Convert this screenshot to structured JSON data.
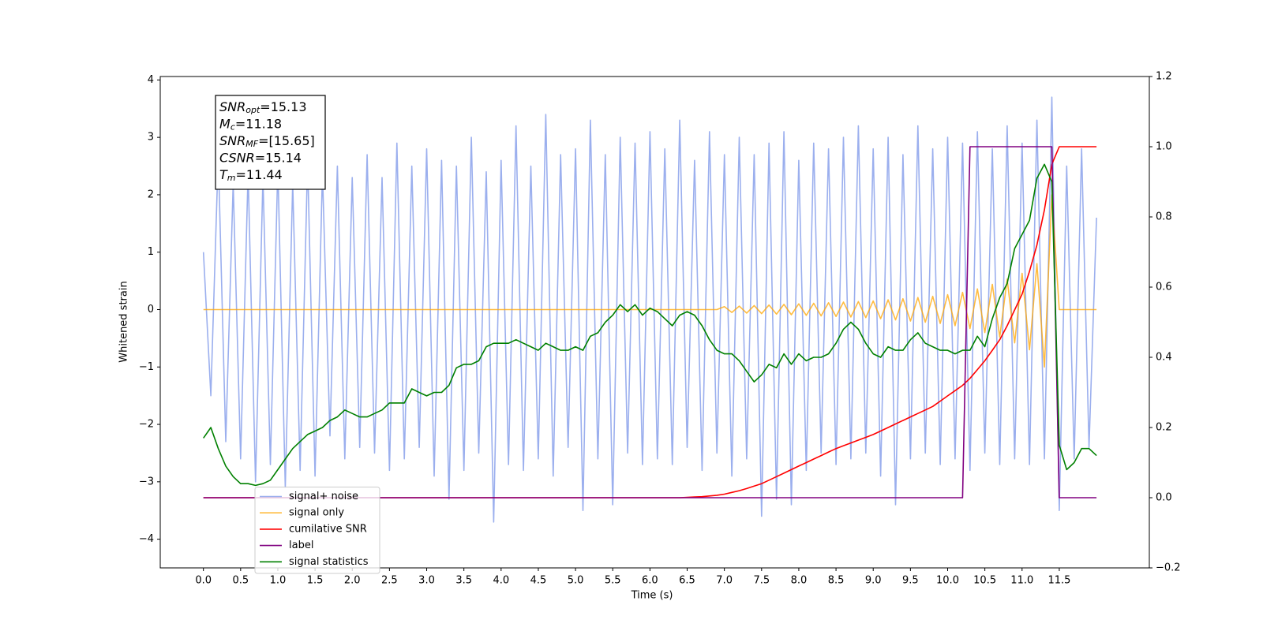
{
  "chart_data": {
    "type": "line",
    "xlabel": "Time (s)",
    "ylabel": "Whitened strain",
    "xlim": [
      -0.58,
      12.71
    ],
    "ylim": [
      -4.5,
      4.06
    ],
    "y2lim": [
      -0.2,
      1.2
    ],
    "xticks": [
      {
        "value": 0,
        "label": "0.0"
      },
      0.5,
      {
        "value": 1,
        "label": "1.0"
      },
      1.5,
      {
        "value": 2,
        "label": "2.0"
      },
      2.5,
      {
        "value": 3,
        "label": "3.0"
      },
      3.5,
      {
        "value": 4,
        "label": "4.0"
      },
      4.5,
      {
        "value": 5,
        "label": "5.0"
      },
      5.5,
      {
        "value": 6,
        "label": "6.0"
      },
      6.5,
      {
        "value": 7,
        "label": "7.0"
      },
      7.5,
      {
        "value": 8,
        "label": "8.0"
      },
      8.5,
      {
        "value": 9,
        "label": "9.0"
      },
      9.5,
      {
        "value": 10,
        "label": "10.0"
      },
      10.5,
      {
        "value": 11,
        "label": "11.0"
      },
      11.5
    ],
    "yticks": [
      {
        "value": -4,
        "label": "−4"
      },
      {
        "value": -3,
        "label": "−3"
      },
      {
        "value": -2,
        "label": "−2"
      },
      {
        "value": -1,
        "label": "−1"
      },
      0,
      1,
      2,
      3,
      4
    ],
    "y2ticks": [
      {
        "value": -0.2,
        "label": "−0.2"
      },
      {
        "value": 0,
        "label": "0.0"
      },
      0.2,
      0.4,
      0.6,
      0.8,
      {
        "value": 1,
        "label": "1.0"
      },
      1.2
    ],
    "legend": "lower left",
    "annotations": [
      {
        "main": "SNR",
        "sub": "opt",
        "rest": "=15.13"
      },
      {
        "main": "M",
        "sub": "c",
        "rest": "=11.18"
      },
      {
        "main": "SNR",
        "sub": "MF",
        "rest": "=[15.65]"
      },
      {
        "main": "CSNR",
        "sub": null,
        "rest": "=15.14"
      },
      {
        "main": "T",
        "sub": "m",
        "rest": "=11.44"
      }
    ],
    "x": [
      0.0,
      0.1,
      0.2,
      0.3,
      0.4,
      0.5,
      0.6,
      0.7,
      0.8,
      0.9,
      1.0,
      1.1,
      1.2,
      1.3,
      1.4,
      1.5,
      1.6,
      1.7,
      1.8,
      1.9,
      2.0,
      2.1,
      2.2,
      2.3,
      2.4,
      2.5,
      2.6,
      2.7,
      2.8,
      2.9,
      3.0,
      3.1,
      3.2,
      3.3,
      3.4,
      3.5,
      3.6,
      3.7,
      3.8,
      3.9,
      4.0,
      4.1,
      4.2,
      4.3,
      4.4,
      4.5,
      4.6,
      4.7,
      4.8,
      4.9,
      5.0,
      5.1,
      5.2,
      5.3,
      5.4,
      5.5,
      5.6,
      5.7,
      5.8,
      5.9,
      6.0,
      6.1,
      6.2,
      6.3,
      6.4,
      6.5,
      6.6,
      6.7,
      6.8,
      6.9,
      7.0,
      7.1,
      7.2,
      7.3,
      7.4,
      7.5,
      7.6,
      7.7,
      7.8,
      7.9,
      8.0,
      8.1,
      8.2,
      8.3,
      8.4,
      8.5,
      8.6,
      8.7,
      8.8,
      8.9,
      9.0,
      9.1,
      9.2,
      9.3,
      9.4,
      9.5,
      9.6,
      9.7,
      9.8,
      9.9,
      10.0,
      10.1,
      10.2,
      10.3,
      10.4,
      10.5,
      10.6,
      10.7,
      10.8,
      10.9,
      11.0,
      11.1,
      11.2,
      11.3,
      11.4,
      11.5,
      11.6,
      11.7,
      11.8,
      11.9,
      12.0
    ],
    "series": [
      {
        "name": "signal+ noise",
        "color": "#7a94e8",
        "axis": "y",
        "values": [
          1.0,
          -1.5,
          2.7,
          -2.3,
          2.2,
          -2.6,
          2.4,
          -3.0,
          2.3,
          -2.7,
          2.5,
          -3.1,
          2.2,
          -2.8,
          2.6,
          -2.9,
          2.4,
          -2.2,
          2.5,
          -2.6,
          2.3,
          -2.4,
          2.7,
          -2.5,
          2.3,
          -2.8,
          2.9,
          -2.6,
          2.5,
          -2.4,
          2.8,
          -2.9,
          2.6,
          -3.3,
          2.5,
          -2.8,
          3.0,
          -2.5,
          2.4,
          -3.7,
          2.6,
          -2.7,
          3.2,
          -2.8,
          2.5,
          -2.6,
          3.4,
          -2.9,
          2.7,
          -2.4,
          2.8,
          -3.5,
          3.3,
          -2.6,
          2.7,
          -3.4,
          3.0,
          -2.5,
          2.9,
          -2.7,
          3.1,
          -2.6,
          2.8,
          -2.7,
          3.3,
          -2.4,
          2.6,
          -2.8,
          3.1,
          -2.5,
          2.7,
          -2.9,
          3.0,
          -2.6,
          2.7,
          -3.6,
          2.9,
          -3.3,
          3.1,
          -3.4,
          2.6,
          -2.8,
          2.9,
          -2.5,
          2.8,
          -2.7,
          3.0,
          -2.6,
          3.2,
          -2.5,
          2.8,
          -2.9,
          3.0,
          -3.4,
          2.7,
          -2.6,
          3.2,
          -2.5,
          2.8,
          -2.7,
          3.0,
          -2.6,
          2.9,
          -2.8,
          3.1,
          -2.5,
          2.8,
          -2.7,
          3.2,
          -2.6,
          2.9,
          -2.7,
          3.3,
          -2.6,
          3.7,
          -3.5,
          2.5,
          -2.6,
          2.8,
          -2.4,
          1.6
        ]
      },
      {
        "name": "signal only",
        "color": "#ffa500",
        "axis": "y",
        "values": [
          0,
          0,
          0,
          0,
          0,
          0,
          0,
          0,
          0,
          0,
          0,
          0,
          0,
          0,
          0,
          0,
          0,
          0,
          0,
          0,
          0,
          0,
          0,
          0,
          0,
          0,
          0,
          0,
          0,
          0,
          0,
          0,
          0,
          0,
          0,
          0,
          0,
          0,
          0,
          0,
          0,
          0,
          0,
          0,
          0,
          0,
          0,
          0,
          0,
          0,
          0,
          0,
          0,
          0,
          0,
          0,
          0,
          0,
          0,
          0,
          0,
          0,
          0,
          0,
          0,
          0,
          0,
          0,
          0,
          0,
          0.05,
          -0.05,
          0.06,
          -0.06,
          0.07,
          -0.07,
          0.08,
          -0.08,
          0.09,
          -0.09,
          0.1,
          -0.1,
          0.11,
          -0.11,
          0.12,
          -0.12,
          0.13,
          -0.13,
          0.14,
          -0.14,
          0.15,
          -0.16,
          0.17,
          -0.18,
          0.19,
          -0.2,
          0.21,
          -0.22,
          0.23,
          -0.24,
          0.26,
          -0.28,
          0.3,
          -0.33,
          0.36,
          -0.4,
          0.44,
          -0.48,
          0.53,
          -0.58,
          0.63,
          -0.7,
          0.8,
          -1.0,
          2.0,
          0,
          0,
          0,
          0,
          0,
          0
        ]
      },
      {
        "name": "cumilative SNR",
        "color": "#ff0000",
        "axis": "y2",
        "values": [
          0,
          0,
          0,
          0,
          0,
          0,
          0,
          0,
          0,
          0,
          0,
          0,
          0,
          0,
          0,
          0,
          0,
          0,
          0,
          0,
          0,
          0,
          0,
          0,
          0,
          0,
          0,
          0,
          0,
          0,
          0,
          0,
          0,
          0,
          0,
          0,
          0,
          0,
          0,
          0,
          0,
          0,
          0,
          0,
          0,
          0,
          0,
          0,
          0,
          0,
          0,
          0,
          0,
          0,
          0,
          0,
          0,
          0,
          0,
          0,
          0,
          0,
          0,
          0,
          0,
          0.001,
          0.002,
          0.003,
          0.005,
          0.007,
          0.01,
          0.015,
          0.02,
          0.026,
          0.033,
          0.04,
          0.05,
          0.06,
          0.07,
          0.08,
          0.09,
          0.1,
          0.11,
          0.12,
          0.13,
          0.14,
          0.148,
          0.156,
          0.164,
          0.172,
          0.18,
          0.19,
          0.2,
          0.21,
          0.22,
          0.23,
          0.24,
          0.25,
          0.26,
          0.275,
          0.29,
          0.305,
          0.32,
          0.34,
          0.365,
          0.39,
          0.42,
          0.45,
          0.49,
          0.535,
          0.58,
          0.645,
          0.72,
          0.82,
          0.95,
          1.0,
          1.0,
          1.0,
          1.0,
          1.0,
          1.0
        ]
      },
      {
        "name": "label",
        "color": "#800080",
        "axis": "y2",
        "values": [
          0,
          0,
          0,
          0,
          0,
          0,
          0,
          0,
          0,
          0,
          0,
          0,
          0,
          0,
          0,
          0,
          0,
          0,
          0,
          0,
          0,
          0,
          0,
          0,
          0,
          0,
          0,
          0,
          0,
          0,
          0,
          0,
          0,
          0,
          0,
          0,
          0,
          0,
          0,
          0,
          0,
          0,
          0,
          0,
          0,
          0,
          0,
          0,
          0,
          0,
          0,
          0,
          0,
          0,
          0,
          0,
          0,
          0,
          0,
          0,
          0,
          0,
          0,
          0,
          0,
          0,
          0,
          0,
          0,
          0,
          0,
          0,
          0,
          0,
          0,
          0,
          0,
          0,
          0,
          0,
          0,
          0,
          0,
          0,
          0,
          0,
          0,
          0,
          0,
          0,
          0,
          0,
          0,
          0,
          0,
          0,
          0,
          0,
          0,
          0,
          0,
          0,
          0,
          1,
          1,
          1,
          1,
          1,
          1,
          1,
          1,
          1,
          1,
          1,
          1,
          0,
          0,
          0,
          0,
          0,
          0
        ]
      },
      {
        "name": "signal statistics",
        "color": "#008000",
        "axis": "y2",
        "values": [
          0.17,
          0.2,
          0.14,
          0.09,
          0.06,
          0.04,
          0.04,
          0.035,
          0.04,
          0.05,
          0.08,
          0.11,
          0.14,
          0.16,
          0.18,
          0.19,
          0.2,
          0.22,
          0.23,
          0.25,
          0.24,
          0.23,
          0.23,
          0.24,
          0.25,
          0.27,
          0.27,
          0.27,
          0.31,
          0.3,
          0.29,
          0.3,
          0.3,
          0.32,
          0.37,
          0.38,
          0.38,
          0.39,
          0.43,
          0.44,
          0.44,
          0.44,
          0.45,
          0.44,
          0.43,
          0.42,
          0.44,
          0.43,
          0.42,
          0.42,
          0.43,
          0.42,
          0.46,
          0.47,
          0.5,
          0.52,
          0.55,
          0.53,
          0.55,
          0.52,
          0.54,
          0.53,
          0.51,
          0.49,
          0.52,
          0.53,
          0.52,
          0.49,
          0.45,
          0.42,
          0.41,
          0.41,
          0.39,
          0.36,
          0.33,
          0.35,
          0.38,
          0.37,
          0.41,
          0.38,
          0.41,
          0.39,
          0.4,
          0.4,
          0.41,
          0.44,
          0.48,
          0.5,
          0.48,
          0.44,
          0.41,
          0.4,
          0.43,
          0.42,
          0.42,
          0.45,
          0.47,
          0.44,
          0.43,
          0.42,
          0.42,
          0.41,
          0.42,
          0.42,
          0.46,
          0.43,
          0.51,
          0.57,
          0.61,
          0.71,
          0.75,
          0.79,
          0.91,
          0.95,
          0.9,
          0.15,
          0.08,
          0.1,
          0.14,
          0.14,
          0.12
        ]
      }
    ]
  }
}
